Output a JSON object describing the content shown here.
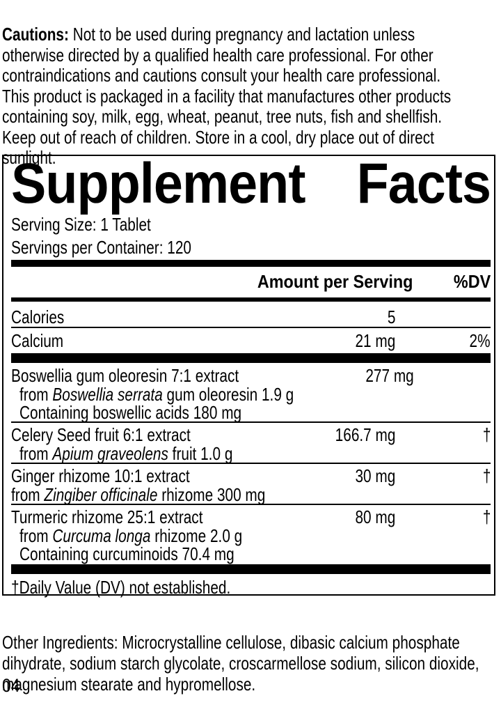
{
  "colors": {
    "ink": "#000000",
    "paper": "#ffffff"
  },
  "cautions": {
    "label": "Cautions:",
    "text": " Not to be used during pregnancy and lactation unless\notherwise directed by a qualified health care professional. For other\ncontraindications and cautions consult your health care professional.\nThis product is packaged in a facility that manufactures other products\ncontaining soy, milk, egg, wheat, peanut, tree nuts, fish and shellfish.\nKeep out of reach of children. Store in a cool, dry place out of direct\nsunlight."
  },
  "panel": {
    "title": {
      "word1": "Supplement",
      "word2": "Facts"
    },
    "serving_size": "Serving Size: 1 Tablet",
    "servings_per_container": "Servings per Container: 120",
    "header": {
      "amount": "Amount per Serving",
      "dv": "%DV"
    },
    "calories": {
      "name": "Calories",
      "amount": "5",
      "dv": ""
    },
    "calcium": {
      "name": "Calcium",
      "amount": "21 mg",
      "dv": "2%"
    },
    "ingredients": [
      {
        "name": "Boswellia gum oleoresin 7:1 extract",
        "amount": "277 mg",
        "dv": "†",
        "sub1": {
          "pre": "from ",
          "italic": "Boswellia serrata",
          "post": " gum oleoresin 1.9 g"
        },
        "sub2": "Containing boswellic acids 180 mg"
      },
      {
        "name": "Celery Seed fruit 6:1 extract",
        "amount": "166.7 mg",
        "dv": "†",
        "sub1": {
          "pre": "from ",
          "italic": "Apium graveolens",
          "post": " fruit 1.0 g"
        }
      },
      {
        "name": "Ginger rhizome 10:1 extract",
        "amount": "30 mg",
        "dv": "†",
        "sub1": {
          "pre": "from ",
          "italic": "Zingiber officinale",
          "post": " rhizome 300 mg"
        }
      },
      {
        "name": "Turmeric rhizome 25:1 extract",
        "amount": "80 mg",
        "dv": "†",
        "sub1": {
          "pre": "from ",
          "italic": "Curcuma longa",
          "post": " rhizome 2.0 g"
        },
        "sub2": "Containing curcuminoids 70.4 mg"
      }
    ],
    "footnote": "†Daily Value (DV) not established."
  },
  "other_ingredients": "Other Ingredients: Microcrystalline cellulose, dibasic calcium phosphate\ndihydrate, sodium starch glycolate, croscarmellose sodium, silicon dioxide,\nmagnesium stearate and hypromellose.",
  "page_number": "04"
}
